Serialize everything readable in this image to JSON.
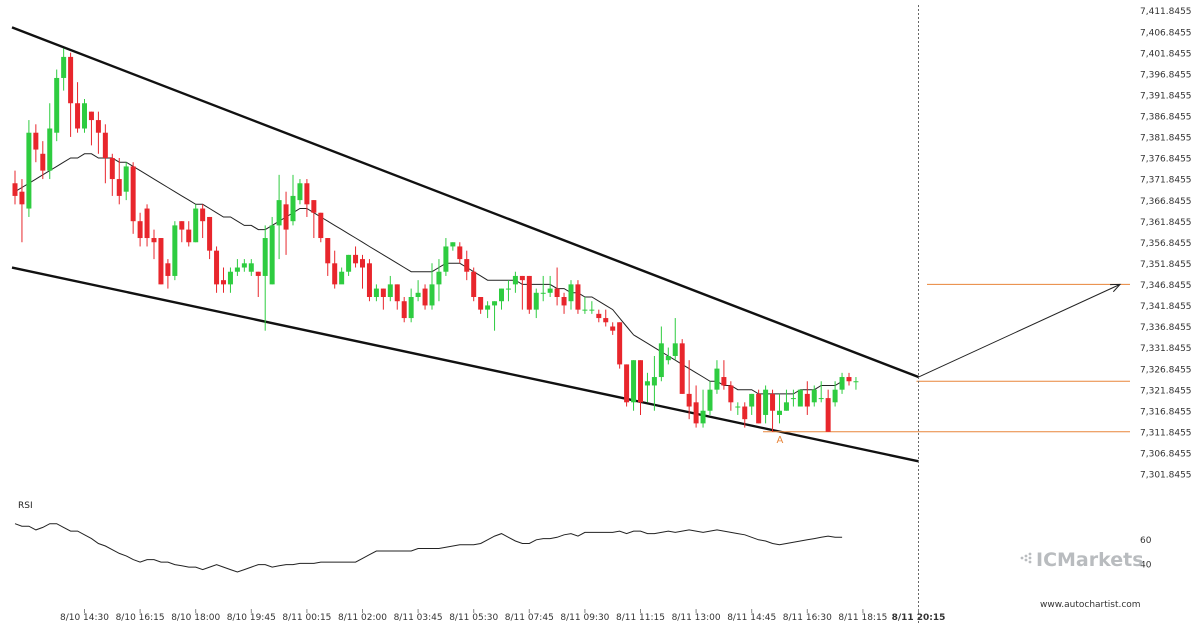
{
  "chart_data": {
    "type": "candlestick",
    "price_axis": {
      "ylim": [
        7299.8455,
        7412.8455
      ],
      "ticks": [
        "7,411.8455",
        "7,406.8455",
        "7,401.8455",
        "7,396.8455",
        "7,391.8455",
        "7,386.8455",
        "7,381.8455",
        "7,376.8455",
        "7,371.8455",
        "7,366.8455",
        "7,361.8455",
        "7,356.8455",
        "7,351.8455",
        "7,346.8455",
        "7,341.8455",
        "7,336.8455",
        "7,331.8455",
        "7,326.8455",
        "7,321.8455",
        "7,316.8455",
        "7,311.8455",
        "7,306.8455",
        "7,301.8455"
      ],
      "tick_values": [
        7411.8455,
        7406.8455,
        7401.8455,
        7396.8455,
        7391.8455,
        7386.8455,
        7381.8455,
        7376.8455,
        7371.8455,
        7366.8455,
        7361.8455,
        7356.8455,
        7351.8455,
        7346.8455,
        7341.8455,
        7336.8455,
        7331.8455,
        7326.8455,
        7321.8455,
        7316.8455,
        7311.8455,
        7306.8455,
        7301.8455
      ]
    },
    "time_axis": {
      "bar_count": 130,
      "labels": [
        {
          "text": "8/10 14:30",
          "bar": 10
        },
        {
          "text": "8/10 16:15",
          "bar": 18
        },
        {
          "text": "8/10 18:00",
          "bar": 26
        },
        {
          "text": "8/10 19:45",
          "bar": 34
        },
        {
          "text": "8/11 00:15",
          "bar": 42
        },
        {
          "text": "8/11 02:00",
          "bar": 50
        },
        {
          "text": "8/11 03:45",
          "bar": 58
        },
        {
          "text": "8/11 05:30",
          "bar": 66
        },
        {
          "text": "8/11 07:45",
          "bar": 74
        },
        {
          "text": "8/11 09:30",
          "bar": 82
        },
        {
          "text": "8/11 11:15",
          "bar": 90
        },
        {
          "text": "8/11 13:00",
          "bar": 98
        },
        {
          "text": "8/11 14:45",
          "bar": 106
        },
        {
          "text": "8/11 16:30",
          "bar": 114
        },
        {
          "text": "8/11 18:15",
          "bar": 122
        },
        {
          "text": "8/11 20:15",
          "bar": 130,
          "bold": true
        }
      ]
    },
    "candles": [
      [
        7371,
        7368,
        7374,
        7366
      ],
      [
        7369,
        7366,
        7372,
        7357
      ],
      [
        7365,
        7383,
        7386,
        7363
      ],
      [
        7383,
        7379,
        7385,
        7376
      ],
      [
        7378,
        7374,
        7381,
        7372
      ],
      [
        7374,
        7384,
        7390,
        7372
      ],
      [
        7383,
        7396,
        7398,
        7381
      ],
      [
        7396,
        7401,
        7403,
        7393
      ],
      [
        7401,
        7390,
        7402,
        7382
      ],
      [
        7390,
        7384,
        7395,
        7383
      ],
      [
        7384,
        7390,
        7391,
        7383
      ],
      [
        7388,
        7386,
        7388,
        7380
      ],
      [
        7386,
        7383,
        7388,
        7378
      ],
      [
        7383,
        7377,
        7385,
        7371
      ],
      [
        7377,
        7372,
        7378,
        7368
      ],
      [
        7372,
        7368,
        7377,
        7366
      ],
      [
        7369,
        7375,
        7376,
        7367
      ],
      [
        7375,
        7362,
        7376,
        7359
      ],
      [
        7362,
        7358,
        7364,
        7356
      ],
      [
        7365,
        7358,
        7366,
        7356
      ],
      [
        7358,
        7357,
        7360,
        7353
      ],
      [
        7358,
        7347,
        7358,
        7347
      ],
      [
        7352,
        7349,
        7353,
        7346
      ],
      [
        7349,
        7361,
        7362,
        7348
      ],
      [
        7362,
        7360,
        7362,
        7357
      ],
      [
        7360,
        7357,
        7362,
        7356
      ],
      [
        7357,
        7365,
        7366,
        7357
      ],
      [
        7365,
        7362,
        7366,
        7358
      ],
      [
        7363,
        7355,
        7363,
        7353
      ],
      [
        7355,
        7347,
        7356,
        7345
      ],
      [
        7348,
        7347,
        7351,
        7345
      ],
      [
        7347,
        7350,
        7351,
        7345
      ],
      [
        7350,
        7351,
        7353,
        7349
      ],
      [
        7351,
        7352,
        7353,
        7350
      ],
      [
        7350,
        7352,
        7353,
        7349
      ],
      [
        7350,
        7349,
        7350,
        7344
      ],
      [
        7349,
        7358,
        7361,
        7336
      ],
      [
        7347,
        7361,
        7363,
        7347
      ],
      [
        7361,
        7367,
        7373,
        7353
      ],
      [
        7366,
        7360,
        7369,
        7354
      ],
      [
        7362,
        7368,
        7373,
        7361
      ],
      [
        7367,
        7371,
        7372,
        7366
      ],
      [
        7371,
        7366,
        7372,
        7363
      ],
      [
        7367,
        7364,
        7367,
        7358
      ],
      [
        7364,
        7358,
        7364,
        7357
      ],
      [
        7358,
        7352,
        7358,
        7349
      ],
      [
        7352,
        7347,
        7355,
        7346
      ],
      [
        7347,
        7350,
        7351,
        7348
      ],
      [
        7350,
        7354,
        7354,
        7349
      ],
      [
        7354,
        7352,
        7356,
        7351
      ],
      [
        7353,
        7351,
        7354,
        7346
      ],
      [
        7352,
        7344,
        7353,
        7343
      ],
      [
        7344,
        7346,
        7347,
        7343
      ],
      [
        7346,
        7344,
        7346,
        7341
      ],
      [
        7344,
        7347,
        7349,
        7343
      ],
      [
        7347,
        7343,
        7347,
        7341
      ],
      [
        7343,
        7339,
        7344,
        7338
      ],
      [
        7339,
        7344,
        7346,
        7338
      ],
      [
        7344,
        7345,
        7348,
        7343
      ],
      [
        7346,
        7342,
        7347,
        7341
      ],
      [
        7342,
        7347,
        7352,
        7341
      ],
      [
        7347,
        7350,
        7353,
        7343
      ],
      [
        7350,
        7356,
        7358,
        7349
      ],
      [
        7356,
        7357,
        7357,
        7355
      ],
      [
        7356,
        7353,
        7357,
        7352
      ],
      [
        7353,
        7350,
        7355,
        7348
      ],
      [
        7350,
        7344,
        7351,
        7343
      ],
      [
        7344,
        7341,
        7344,
        7340
      ],
      [
        7341,
        7342,
        7343,
        7339
      ],
      [
        7342,
        7343,
        7343,
        7336
      ],
      [
        7343,
        7346,
        7346,
        7341
      ],
      [
        7346,
        7346,
        7348,
        7343
      ],
      [
        7347,
        7349,
        7350,
        7345
      ],
      [
        7349,
        7348,
        7349,
        7341
      ],
      [
        7349,
        7341,
        7349,
        7340
      ],
      [
        7341,
        7345,
        7346,
        7339
      ],
      [
        7345,
        7345,
        7349,
        7343
      ],
      [
        7345,
        7346,
        7349,
        7344
      ],
      [
        7346,
        7344,
        7351,
        7342
      ],
      [
        7344,
        7342,
        7345,
        7340
      ],
      [
        7343,
        7347,
        7348,
        7341
      ],
      [
        7347,
        7341,
        7348,
        7340
      ],
      [
        7341,
        7341,
        7344,
        7340
      ],
      [
        7341,
        7341,
        7343,
        7340
      ],
      [
        7340,
        7339,
        7341,
        7338
      ],
      [
        7339,
        7338,
        7341,
        7337
      ],
      [
        7337,
        7336,
        7338,
        7335
      ],
      [
        7338,
        7328,
        7338,
        7327
      ],
      [
        7328,
        7319,
        7328,
        7318
      ],
      [
        7319,
        7329,
        7329,
        7317
      ],
      [
        7329,
        7319,
        7329,
        7316
      ],
      [
        7323,
        7324,
        7326,
        7319
      ],
      [
        7323,
        7325,
        7330,
        7317
      ],
      [
        7325,
        7333,
        7337,
        7324
      ],
      [
        7329,
        7330,
        7332,
        7328
      ],
      [
        7330,
        7333,
        7339,
        7329
      ],
      [
        7333,
        7321,
        7334,
        7321
      ],
      [
        7321,
        7318,
        7329,
        7315
      ],
      [
        7319,
        7314,
        7323,
        7313
      ],
      [
        7314,
        7317,
        7322,
        7313
      ],
      [
        7317,
        7322,
        7324,
        7316
      ],
      [
        7322,
        7327,
        7329,
        7321
      ],
      [
        7325,
        7323,
        7329,
        7322
      ],
      [
        7323,
        7319,
        7324,
        7317
      ],
      [
        7318,
        7318,
        7319,
        7316
      ],
      [
        7318,
        7315,
        7319,
        7313
      ],
      [
        7318,
        7321,
        7321,
        7316
      ],
      [
        7321,
        7314,
        7322,
        7314
      ],
      [
        7316,
        7322,
        7323,
        7314
      ],
      [
        7321,
        7317,
        7322,
        7312
      ],
      [
        7316,
        7317,
        7321,
        7314
      ],
      [
        7317,
        7319,
        7322,
        7317
      ],
      [
        7320,
        7320,
        7322,
        7318
      ],
      [
        7318,
        7322,
        7322,
        7318
      ],
      [
        7321,
        7318,
        7324,
        7316
      ],
      [
        7319,
        7322,
        7323,
        7318
      ],
      [
        7320,
        7320,
        7324,
        7319
      ],
      [
        7320,
        7312,
        7322,
        7312
      ],
      [
        7319,
        7322,
        7324,
        7318
      ],
      [
        7322,
        7325,
        7326,
        7321
      ],
      [
        7325,
        7324,
        7326,
        7323
      ],
      [
        7324,
        7324,
        7325,
        7322
      ]
    ],
    "sma": [
      7369,
      7370,
      7371,
      7372,
      7373,
      7374,
      7375,
      7376,
      7377,
      7377,
      7378,
      7378,
      7377,
      7377,
      7377,
      7376,
      7376,
      7375,
      7374,
      7373,
      7372,
      7371,
      7370,
      7369,
      7368,
      7367,
      7366,
      7366,
      7365,
      7364,
      7363,
      7363,
      7362,
      7361,
      7361,
      7360,
      7360,
      7361,
      7362,
      7363,
      7364,
      7365,
      7365,
      7364,
      7363,
      7362,
      7361,
      7360,
      7359,
      7358,
      7357,
      7356,
      7355,
      7354,
      7353,
      7352,
      7351,
      7350,
      7350,
      7350,
      7350,
      7351,
      7352,
      7352,
      7352,
      7351,
      7350,
      7349,
      7348,
      7348,
      7348,
      7348,
      7348,
      7347,
      7347,
      7347,
      7347,
      7347,
      7346,
      7346,
      7345,
      7345,
      7344,
      7344,
      7343,
      7342,
      7341,
      7339,
      7337,
      7335,
      7334,
      7333,
      7332,
      7331,
      7330,
      7329,
      7328,
      7327,
      7326,
      7325,
      7324,
      7324,
      7323,
      7323,
      7322,
      7322,
      7322,
      7321,
      7321,
      7321,
      7321,
      7321,
      7321,
      7322,
      7322,
      7322,
      7323,
      7323,
      7323,
      7324
    ],
    "rsi": {
      "title": "RSI",
      "ylim": [
        30,
        80
      ],
      "ticks": [
        60,
        40
      ],
      "values": [
        73,
        71,
        71,
        68,
        70,
        73,
        73,
        70,
        67,
        67,
        64,
        61,
        57,
        55,
        52,
        49,
        47,
        44,
        42,
        44,
        44,
        42,
        42,
        40,
        39,
        38,
        38,
        36,
        38,
        40,
        38,
        36,
        34,
        36,
        38,
        40,
        40,
        38,
        39,
        40,
        40,
        41,
        41,
        41,
        42,
        42,
        42,
        42,
        42,
        42,
        45,
        48,
        51,
        51,
        51,
        51,
        51,
        51,
        53,
        53,
        53,
        53,
        54,
        55,
        56,
        56,
        56,
        57,
        60,
        63,
        65,
        62,
        59,
        57,
        57,
        60,
        61,
        61,
        62,
        64,
        65,
        63,
        66,
        66,
        66,
        66,
        66,
        67,
        65,
        67,
        67,
        65,
        65,
        66,
        67,
        66,
        67,
        68,
        67,
        66,
        67,
        68,
        67,
        66,
        65,
        64,
        62,
        60,
        59,
        57,
        56,
        57,
        58,
        59,
        60,
        61,
        62,
        63,
        62,
        62
      ]
    },
    "annotations": {
      "upper_trendline": [
        7408,
        7325
      ],
      "lower_trendline": [
        7351,
        7305
      ],
      "levels": [
        7324,
        7312,
        7347
      ],
      "point_label": "A",
      "point_label_bar": 110,
      "arrow_from": [
        130,
        7325
      ],
      "arrow_to": [
        159,
        7347
      ]
    },
    "colors": {
      "up": "#2ecc40",
      "down": "#e8262c",
      "trend": "#111111",
      "sma": "#222222",
      "level": "#e8853a",
      "grid": "#dddddd",
      "rsi": "#222222"
    }
  },
  "branding": {
    "logo_text": "ICMarkets",
    "website": "www.autochartist.com"
  }
}
